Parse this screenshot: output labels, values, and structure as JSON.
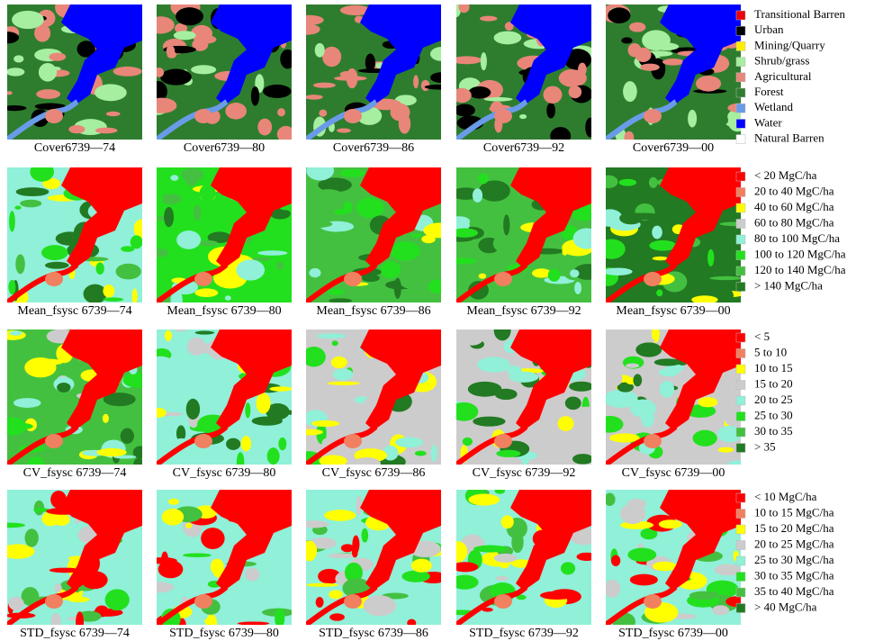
{
  "rows": [
    {
      "captions": [
        "Cover6739—74",
        "Cover6739—80",
        "Cover6739—86",
        "Cover6739—92",
        "Cover6739—00"
      ],
      "legend": [
        {
          "label": "Transitional Barren",
          "color": "#e8000b"
        },
        {
          "label": "Urban",
          "color": "#000000"
        },
        {
          "label": "Mining/Quarry",
          "color": "#ffee00"
        },
        {
          "label": "Shrub/grass",
          "color": "#a6eea0"
        },
        {
          "label": "Agricultural",
          "color": "#e8867a"
        },
        {
          "label": "Forest",
          "color": "#2e7d2e"
        },
        {
          "label": "Wetland",
          "color": "#6a9be8"
        },
        {
          "label": "Water",
          "color": "#0000ff"
        },
        {
          "label": "Natural Barren",
          "color": "#ffffff"
        }
      ]
    },
    {
      "captions": [
        "Mean_fsysc 6739—74",
        "Mean_fsysc 6739—80",
        "Mean_fsysc 6739—86",
        "Mean_fsysc 6739—92",
        "Mean_fsysc 6739—00"
      ],
      "legend": [
        {
          "label": "< 20 MgC/ha",
          "color": "#ff0000"
        },
        {
          "label": "20 to 40 MgC/ha",
          "color": "#f08060"
        },
        {
          "label": "40 to 60 MgC/ha",
          "color": "#ffff00"
        },
        {
          "label": "60 to 80 MgC/ha",
          "color": "#cccccc"
        },
        {
          "label": "80 to 100 MgC/ha",
          "color": "#90f0d8"
        },
        {
          "label": "100 to 120 MgC/ha",
          "color": "#22e01e"
        },
        {
          "label": "120 to 140 MgC/ha",
          "color": "#44c040"
        },
        {
          "label": "> 140 MgC/ha",
          "color": "#227a22"
        }
      ]
    },
    {
      "captions": [
        "CV_fsysc 6739—74",
        "CV_fsysc 6739—80",
        "CV_fsysc 6739—86",
        "CV_fsysc 6739—92",
        "CV_fsysc 6739—00"
      ],
      "legend": [
        {
          "label": "< 5",
          "color": "#ff0000"
        },
        {
          "label": "5 to 10",
          "color": "#f08060"
        },
        {
          "label": "10 to 15",
          "color": "#ffff00"
        },
        {
          "label": "15 to 20",
          "color": "#cccccc"
        },
        {
          "label": "20 to 25",
          "color": "#90f0d8"
        },
        {
          "label": "25 to 30",
          "color": "#22e01e"
        },
        {
          "label": "30 to 35",
          "color": "#44c040"
        },
        {
          "label": "> 35",
          "color": "#227a22"
        }
      ]
    },
    {
      "captions": [
        "STD_fsysc 6739—74",
        "STD_fsysc 6739—80",
        "STD_fsysc 6739—86",
        "STD_fsysc 6739—92",
        "STD_fsysc 6739—00"
      ],
      "legend": [
        {
          "label": "< 10 MgC/ha",
          "color": "#ff0000"
        },
        {
          "label": "10 to 15 MgC/ha",
          "color": "#f08060"
        },
        {
          "label": "15 to 20 MgC/ha",
          "color": "#ffff00"
        },
        {
          "label": "20 to 25 MgC/ha",
          "color": "#cccccc"
        },
        {
          "label": "25 to 30 MgC/ha",
          "color": "#90f0d8"
        },
        {
          "label": "30 to 35 MgC/ha",
          "color": "#22e01e"
        },
        {
          "label": "35 to 40 MgC/ha",
          "color": "#44c040"
        },
        {
          "label": "> 40 MgC/ha",
          "color": "#227a22"
        }
      ]
    }
  ]
}
